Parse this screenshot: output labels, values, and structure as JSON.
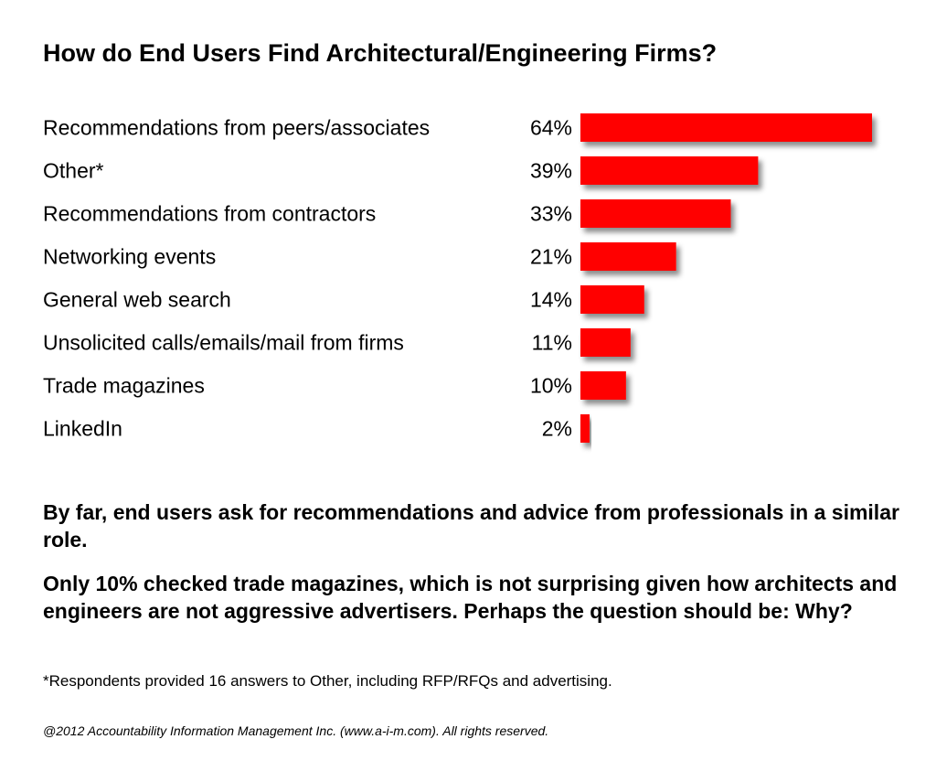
{
  "chart_data": {
    "type": "bar",
    "orientation": "horizontal",
    "title": "How do End Users Find Architectural/Engineering Firms?",
    "categories": [
      "Recommendations from peers/associates",
      "Other*",
      "Recommendations from contractors",
      "Networking events",
      "General web search",
      "Unsolicited calls/emails/mail from firms",
      "Trade magazines",
      "LinkedIn"
    ],
    "values": [
      64,
      39,
      33,
      21,
      14,
      11,
      10,
      2
    ],
    "value_labels": [
      "64%",
      "39%",
      "33%",
      "21%",
      "14%",
      "11%",
      "10%",
      "2%"
    ],
    "unit": "%",
    "xlim": [
      0,
      64
    ],
    "grid": false,
    "legend": "none",
    "bar_color": "#ff0000"
  },
  "takeaways": [
    "By far, end users ask for recommendations and advice from professionals in a similar role.",
    "Only 10% checked trade magazines, which is not surprising given how architects and engineers are not aggressive advertisers. Perhaps the question should be: Why?"
  ],
  "footnote": "*Respondents provided 16 answers to Other, including RFP/RFQs and advertising.",
  "copyright": "@2012 Accountability Information Management Inc. (www.a-i-m.com). All rights reserved."
}
